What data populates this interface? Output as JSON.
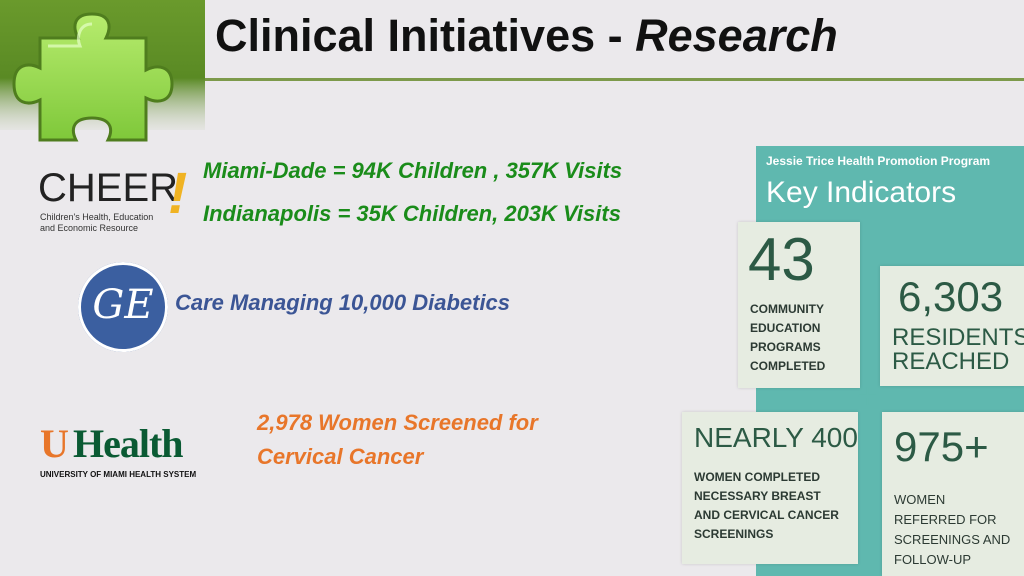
{
  "header": {
    "title_plain": "Clinical Initiatives - ",
    "title_italic": "Research"
  },
  "cheer": {
    "logo_word": "CHEER",
    "logo_mark": "!",
    "logo_sub": "Children's Health, Education and Economic Resource",
    "stats": [
      "Miami-Dade = 94K Children , 357K Visits",
      "Indianapolis = 35K Children, 203K Visits"
    ]
  },
  "ge": {
    "logo_text": "GE",
    "stat": "Care Managing 10,000 Diabetics"
  },
  "uhealth": {
    "logo_word": "Health",
    "logo_sub": "UNIVERSITY OF MIAMI HEALTH SYSTEM",
    "stat_line1": "2,978 Women Screened for",
    "stat_line2": "Cervical Cancer"
  },
  "indicators": {
    "program": "Jessie Trice Health Promotion Program",
    "title": "Key Indicators",
    "cards": [
      {
        "value": "43",
        "lines": [
          "COMMUNITY",
          "EDUCATION",
          "PROGRAMS",
          "COMPLETED"
        ]
      },
      {
        "value": "6,303",
        "lines": [
          "RESIDENTS",
          "REACHED"
        ]
      },
      {
        "value": "NEARLY 400",
        "lines": [
          "WOMEN COMPLETED",
          "NECESSARY BREAST",
          "AND CERVICAL CANCER",
          "SCREENINGS"
        ]
      },
      {
        "value": "975+",
        "lines": [
          "WOMEN",
          "REFERRED FOR",
          "SCREENINGS AND",
          "FOLLOW-UP"
        ]
      }
    ],
    "plus": "+"
  },
  "colors": {
    "accent_green": "#1a8c1a",
    "ge_blue": "#3b5595",
    "uhealth_orange": "#e8762a",
    "panel_teal": "#5fb8af"
  }
}
